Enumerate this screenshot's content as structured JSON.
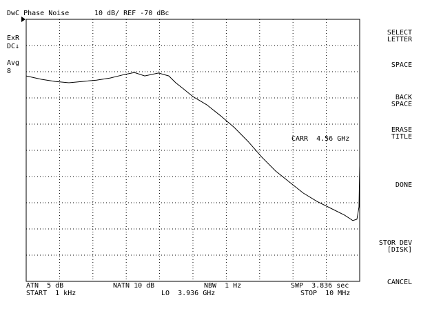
{
  "header": {
    "title": "DwC Phase Noise",
    "scale": "10 dB/ REF -70 dBc"
  },
  "left_annotations": [
    "ExR",
    "DC↓",
    "Avg",
    "8"
  ],
  "marker_text": "CARR  4.56 GHz",
  "bottom_row_1": [
    "ATN  5 dB",
    "NATN 10 dB",
    "NBW  1 Hz",
    "SWP  3.836 sec"
  ],
  "bottom_row_2": [
    "START  1 kHz",
    "LO  3.936 GHz",
    "STOP  10 MHz"
  ],
  "softkeys": [
    [
      "SELECT",
      "LETTER"
    ],
    [
      "SPACE"
    ],
    [
      "BACK",
      "SPACE"
    ],
    [
      "ERASE",
      "TITLE"
    ],
    [
      "DONE"
    ],
    [
      "STOR DEV",
      "[DISK]"
    ],
    [
      "CANCEL"
    ]
  ],
  "chart_data": {
    "type": "line",
    "xscale": "log",
    "xlim": [
      1000,
      10000000
    ],
    "ylim": [
      -170,
      -70
    ],
    "color": "#000000",
    "x": [
      1000,
      1520,
      2224,
      3253,
      4760,
      6966,
      10190,
      14920,
      19830,
      26370,
      38620,
      51370,
      62150,
      75150,
      100000,
      146300,
      214100,
      313100,
      458100,
      670300,
      981700,
      1436000,
      2099000,
      3075000,
      4498000,
      6577000,
      8260000,
      9267000,
      9815000,
      10000000
    ],
    "values": [
      -91.6,
      -92.9,
      -93.7,
      -94.2,
      -93.7,
      -93.2,
      -92.4,
      -91.1,
      -90.3,
      -91.6,
      -90.5,
      -91.6,
      -94.2,
      -96.3,
      -99.5,
      -102.6,
      -106.8,
      -111.3,
      -116.6,
      -122.6,
      -127.9,
      -132.1,
      -136.3,
      -139.5,
      -142.1,
      -144.7,
      -146.8,
      -146.3,
      -141.6,
      -125.8
    ]
  }
}
